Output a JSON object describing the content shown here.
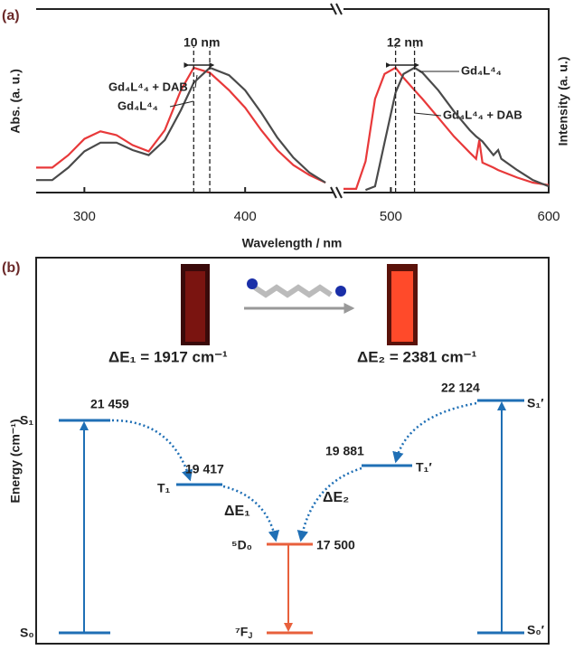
{
  "panel_labels": [
    "(a)",
    "(b)"
  ],
  "chart_data": [
    {
      "type": "line",
      "ylabel": "Abs. (a. u.)",
      "xlabel": "Wavelength / nm",
      "x": [
        270,
        280,
        290,
        300,
        310,
        320,
        330,
        340,
        350,
        360,
        368,
        378,
        390,
        400,
        410,
        420,
        430,
        440,
        450
      ],
      "xlim": [
        270,
        455
      ],
      "xticks": [
        300,
        400
      ],
      "ylim": [
        0,
        1.47
      ],
      "series": [
        {
          "name": "Gd₄L⁴₄ + DAB",
          "color": "#e8393a",
          "values": [
            0.2,
            0.2,
            0.3,
            0.43,
            0.49,
            0.46,
            0.38,
            0.33,
            0.5,
            0.82,
            1.0,
            0.96,
            0.82,
            0.68,
            0.5,
            0.34,
            0.22,
            0.14,
            0.08
          ]
        },
        {
          "name": "Gd₄L⁴₄",
          "color": "#4a4a4a",
          "values": [
            0.1,
            0.1,
            0.2,
            0.33,
            0.4,
            0.4,
            0.34,
            0.3,
            0.42,
            0.66,
            0.88,
            1.0,
            0.94,
            0.82,
            0.64,
            0.44,
            0.28,
            0.16,
            0.08
          ]
        }
      ],
      "peak_markers": [
        368,
        378
      ],
      "annotation": "10 nm"
    },
    {
      "type": "line",
      "ylabel": "Intensity (a. u.)",
      "x": [
        470,
        478,
        484,
        490,
        496,
        503,
        508,
        515,
        520,
        530,
        540,
        550,
        554,
        556,
        558,
        565,
        568,
        570,
        580,
        590,
        600
      ],
      "xlim": [
        470,
        600
      ],
      "xticks": [
        500,
        600
      ],
      "ylim": [
        0,
        1.47
      ],
      "series": [
        {
          "name": "Gd₄L⁴₄ + DAB",
          "color": "#e8393a",
          "values": [
            0.03,
            0.03,
            0.25,
            0.75,
            0.95,
            1.0,
            0.92,
            0.82,
            0.75,
            0.6,
            0.45,
            0.32,
            0.27,
            0.42,
            0.24,
            0.2,
            0.18,
            0.17,
            0.12,
            0.08,
            0.06
          ]
        },
        {
          "name": "Gd₄L⁴₄",
          "color": "#4a4a4a",
          "values": [
            null,
            null,
            0.02,
            0.05,
            0.4,
            0.8,
            0.95,
            1.0,
            0.96,
            0.82,
            0.65,
            0.5,
            0.45,
            0.43,
            0.41,
            0.3,
            0.34,
            0.27,
            0.18,
            0.1,
            0.05
          ]
        }
      ],
      "peak_markers": [
        503,
        515
      ],
      "annotation": "12 nm"
    }
  ],
  "diagram": {
    "ylabel": "Energy (cm⁻¹)",
    "delta1": "ΔE₁ = 1917 cm⁻¹",
    "delta2": "ΔE₂ = 2381 cm⁻¹",
    "levels": {
      "S1": "S₁",
      "S1_energy": "21 459",
      "S0": "S₀",
      "T1": "T₁",
      "T1_energy": "19 417",
      "D0": "⁵D₀",
      "D0_energy": "17 500",
      "FJ": "⁷F<sub>J</sub>",
      "T1p": "T₁′",
      "T1p_energy": "19 881",
      "S1p": "S₁′",
      "S1p_energy": "22 124",
      "S0p": "S₀′"
    },
    "arrow_labels": [
      "ΔE₁",
      "ΔE₂"
    ]
  }
}
